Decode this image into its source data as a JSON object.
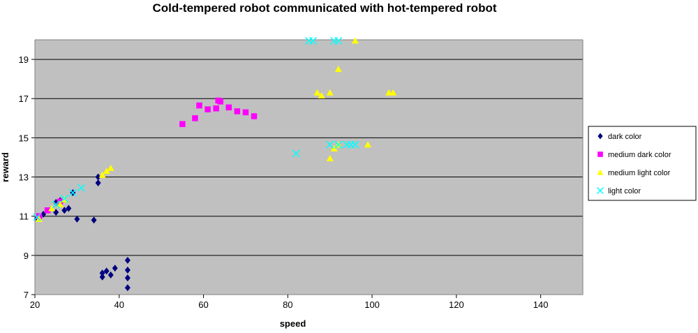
{
  "chart_data": {
    "type": "scatter",
    "title": "Cold-tempered robot communicated with hot-tempered robot",
    "xlabel": "speed",
    "ylabel": "reward",
    "xlim": [
      20,
      150
    ],
    "ylim": [
      7,
      20
    ],
    "xticks": [
      20,
      40,
      60,
      80,
      100,
      120,
      140
    ],
    "yticks": [
      7,
      9,
      11,
      13,
      15,
      17,
      19
    ],
    "grid": "horizontal",
    "plot_background": "#c0c0c0",
    "legend_position": "right",
    "series": [
      {
        "name": "dark color",
        "marker": "diamond",
        "color": "#000080",
        "points": [
          [
            20.5,
            10.9
          ],
          [
            22,
            11.1
          ],
          [
            25,
            11.7
          ],
          [
            25,
            11.2
          ],
          [
            26,
            11.8
          ],
          [
            27,
            11.3
          ],
          [
            28,
            11.4
          ],
          [
            29,
            12.2
          ],
          [
            30,
            10.85
          ],
          [
            34,
            10.8
          ],
          [
            35,
            13.0
          ],
          [
            35,
            12.7
          ],
          [
            36,
            7.9
          ],
          [
            36,
            8.1
          ],
          [
            37,
            8.2
          ],
          [
            38,
            8.0
          ],
          [
            39,
            8.35
          ],
          [
            42,
            8.75
          ],
          [
            42,
            8.25
          ],
          [
            42,
            7.85
          ],
          [
            42,
            7.35
          ]
        ]
      },
      {
        "name": "medium dark color",
        "marker": "square",
        "color": "#ff00ff",
        "points": [
          [
            21,
            11.0
          ],
          [
            23,
            11.3
          ],
          [
            26,
            11.75
          ],
          [
            55,
            15.7
          ],
          [
            58,
            16.0
          ],
          [
            59,
            16.65
          ],
          [
            61,
            16.45
          ],
          [
            63,
            16.5
          ],
          [
            63.5,
            16.9
          ],
          [
            64,
            16.85
          ],
          [
            66,
            16.55
          ],
          [
            68,
            16.35
          ],
          [
            70,
            16.3
          ],
          [
            72,
            16.1
          ]
        ]
      },
      {
        "name": "medium light color",
        "marker": "triangle",
        "color": "#ffff00",
        "points": [
          [
            21,
            10.85
          ],
          [
            24,
            11.4
          ],
          [
            26,
            11.6
          ],
          [
            27,
            11.85
          ],
          [
            36,
            13.1
          ],
          [
            37,
            13.3
          ],
          [
            38,
            13.45
          ],
          [
            87,
            17.3
          ],
          [
            88,
            17.15
          ],
          [
            90,
            17.3
          ],
          [
            90,
            13.95
          ],
          [
            91,
            14.45
          ],
          [
            92,
            14.65
          ],
          [
            92,
            18.5
          ],
          [
            96,
            19.95
          ],
          [
            99,
            14.65
          ],
          [
            104,
            17.3
          ],
          [
            105,
            17.3
          ]
        ]
      },
      {
        "name": "light color",
        "marker": "x",
        "color": "#00ffff",
        "points": [
          [
            20.5,
            10.95
          ],
          [
            25,
            11.6
          ],
          [
            27,
            11.9
          ],
          [
            29,
            12.2
          ],
          [
            31,
            12.45
          ],
          [
            82,
            14.2
          ],
          [
            85,
            19.95
          ],
          [
            86,
            19.95
          ],
          [
            90,
            14.65
          ],
          [
            91,
            19.95
          ],
          [
            92,
            14.65
          ],
          [
            92,
            19.95
          ],
          [
            94,
            14.65
          ],
          [
            95,
            14.65
          ],
          [
            96,
            14.65
          ]
        ]
      }
    ]
  }
}
